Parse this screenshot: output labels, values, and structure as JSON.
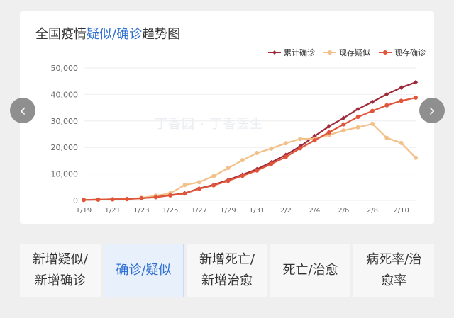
{
  "title": {
    "prefix": "全国疫情",
    "highlight1": "疑似",
    "sep": "/",
    "highlight2": "确诊",
    "suffix": "趋势图"
  },
  "watermark": "丁香园 · 丁香医生",
  "colors": {
    "cumulative": "#9e2a3a",
    "suspected": "#f2c089",
    "current": "#e0553a",
    "grid": "#eeeeee",
    "axis": "#666666",
    "accent": "#2f6fd1"
  },
  "icons": {
    "prev": "chevron-left-icon",
    "next": "chevron-right-icon"
  },
  "nav": {
    "prev_glyph": "‹",
    "next_glyph": "›"
  },
  "chart_data": {
    "type": "line",
    "title": "全国疫情疑似/确诊趋势图",
    "x": [
      "1/19",
      "1/20",
      "1/21",
      "1/22",
      "1/23",
      "1/24",
      "1/25",
      "1/26",
      "1/27",
      "1/28",
      "1/29",
      "1/30",
      "1/31",
      "2/1",
      "2/2",
      "2/3",
      "2/4",
      "2/5",
      "2/6",
      "2/7",
      "2/8",
      "2/9",
      "2/10",
      "2/11"
    ],
    "x_tick_labels": [
      "1/19",
      "1/21",
      "1/23",
      "1/25",
      "1/27",
      "1/29",
      "1/31",
      "2/2",
      "2/4",
      "2/6",
      "2/8",
      "2/10"
    ],
    "y_ticks": [
      0,
      10000,
      20000,
      30000,
      40000,
      50000
    ],
    "y_tick_labels": [
      "0",
      "10,000",
      "20,000",
      "30,000",
      "40,000",
      "50,000"
    ],
    "ylim": [
      0,
      50000
    ],
    "grid": true,
    "legend_position": "top-right",
    "series": [
      {
        "name": "累计确诊",
        "key": "cumulative",
        "values": [
          200,
          300,
          450,
          580,
          830,
          1300,
          2000,
          2700,
          4500,
          5900,
          7700,
          9700,
          11800,
          14400,
          17200,
          20400,
          24300,
          28000,
          31100,
          34500,
          37200,
          40100,
          42600,
          44600
        ]
      },
      {
        "name": "现存疑似",
        "key": "suspected",
        "values": [
          200,
          300,
          400,
          500,
          1000,
          1800,
          2700,
          5800,
          6900,
          9200,
          12200,
          15200,
          17900,
          19600,
          21600,
          23200,
          23300,
          24700,
          26400,
          27600,
          28900,
          23600,
          21700,
          16100
        ]
      },
      {
        "name": "现存确诊",
        "key": "current",
        "values": [
          200,
          300,
          400,
          500,
          800,
          1200,
          1900,
          2600,
          4400,
          5700,
          7400,
          9300,
          11300,
          13800,
          16400,
          19700,
          22700,
          25700,
          28700,
          31500,
          33800,
          35900,
          37600,
          38800
        ]
      }
    ]
  },
  "tabs": [
    {
      "label": "新增疑似/\n新增确诊",
      "active": false
    },
    {
      "label": "确诊/疑似",
      "active": true
    },
    {
      "label": "新增死亡/\n新增治愈",
      "active": false
    },
    {
      "label": "死亡/治愈",
      "active": false
    },
    {
      "label": "病死率/治\n愈率",
      "active": false
    }
  ]
}
